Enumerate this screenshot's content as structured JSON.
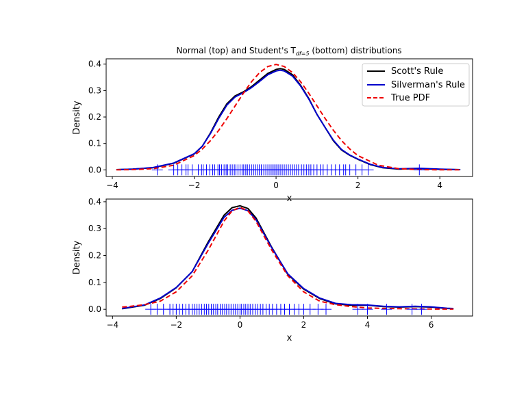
{
  "chart_data": {
    "figure_title": {
      "prefix": "Normal (top) and Student's T",
      "subscript": "df=5",
      "suffix": " (bottom) distributions"
    },
    "legend": {
      "placement": "top-right",
      "entries": [
        {
          "label": "Scott's Rule",
          "color": "#000000",
          "style": "solid"
        },
        {
          "label": "Silverman's Rule",
          "color": "#0000cc",
          "style": "solid"
        },
        {
          "label": "True PDF",
          "color": "#ee0000",
          "style": "dashed"
        }
      ]
    },
    "panels": [
      {
        "type": "line",
        "name": "normal",
        "xlabel": "x",
        "ylabel": "Density",
        "xlim": [
          -4.15,
          4.8
        ],
        "ylim": [
          -0.025,
          0.42
        ],
        "xticks": [
          -4,
          -2,
          0,
          2,
          4
        ],
        "yticks": [
          0.0,
          0.1,
          0.2,
          0.3,
          0.4
        ],
        "series": [
          {
            "name": "Scott's Rule",
            "color": "#000000",
            "dashed": false,
            "x": [
              -3.9,
              -3.5,
              -3.0,
              -2.5,
              -2.0,
              -1.8,
              -1.6,
              -1.4,
              -1.2,
              -1.0,
              -0.8,
              -0.6,
              -0.4,
              -0.2,
              0.0,
              0.1,
              0.2,
              0.4,
              0.6,
              0.8,
              1.0,
              1.2,
              1.4,
              1.6,
              1.8,
              2.0,
              2.3,
              2.6,
              3.0,
              3.5,
              4.0,
              4.5
            ],
            "y": [
              0.001,
              0.003,
              0.008,
              0.025,
              0.06,
              0.09,
              0.14,
              0.2,
              0.25,
              0.28,
              0.295,
              0.315,
              0.34,
              0.365,
              0.38,
              0.383,
              0.38,
              0.36,
              0.32,
              0.27,
              0.21,
              0.16,
              0.11,
              0.075,
              0.055,
              0.04,
              0.02,
              0.008,
              0.003,
              0.005,
              0.002,
              0.001
            ]
          },
          {
            "name": "Silverman's Rule",
            "color": "#0000cc",
            "dashed": false,
            "x": [
              -3.9,
              -3.5,
              -3.0,
              -2.5,
              -2.0,
              -1.8,
              -1.6,
              -1.4,
              -1.2,
              -1.0,
              -0.8,
              -0.6,
              -0.4,
              -0.2,
              0.0,
              0.1,
              0.2,
              0.4,
              0.6,
              0.8,
              1.0,
              1.2,
              1.4,
              1.6,
              1.8,
              2.0,
              2.3,
              2.6,
              3.0,
              3.5,
              4.0,
              4.5
            ],
            "y": [
              0.001,
              0.003,
              0.009,
              0.026,
              0.061,
              0.09,
              0.138,
              0.195,
              0.245,
              0.276,
              0.292,
              0.311,
              0.335,
              0.36,
              0.374,
              0.377,
              0.374,
              0.355,
              0.317,
              0.268,
              0.21,
              0.16,
              0.112,
              0.077,
              0.056,
              0.041,
              0.021,
              0.009,
              0.004,
              0.006,
              0.003,
              0.001
            ]
          },
          {
            "name": "True PDF",
            "color": "#ee0000",
            "dashed": true,
            "x": [
              -3.9,
              -3.5,
              -3.0,
              -2.5,
              -2.0,
              -1.8,
              -1.6,
              -1.4,
              -1.2,
              -1.0,
              -0.8,
              -0.6,
              -0.4,
              -0.2,
              0.0,
              0.2,
              0.4,
              0.6,
              0.8,
              1.0,
              1.2,
              1.4,
              1.6,
              1.8,
              2.0,
              2.5,
              3.0,
              3.5,
              4.0,
              4.5
            ],
            "y": [
              0.0002,
              0.0009,
              0.0044,
              0.0175,
              0.054,
              0.079,
              0.1109,
              0.1497,
              0.1942,
              0.242,
              0.2897,
              0.3332,
              0.3683,
              0.391,
              0.3989,
              0.391,
              0.3683,
              0.3332,
              0.2897,
              0.242,
              0.1942,
              0.1497,
              0.1109,
              0.079,
              0.054,
              0.0175,
              0.0044,
              0.0009,
              0.0002,
              0.0
            ]
          }
        ],
        "rug": [
          -2.9,
          -2.5,
          -2.4,
          -2.3,
          -2.2,
          -2.15,
          -2.05,
          -1.9,
          -1.82,
          -1.78,
          -1.7,
          -1.62,
          -1.55,
          -1.5,
          -1.42,
          -1.38,
          -1.33,
          -1.27,
          -1.22,
          -1.18,
          -1.12,
          -1.07,
          -1.02,
          -0.98,
          -0.93,
          -0.88,
          -0.83,
          -0.79,
          -0.74,
          -0.7,
          -0.65,
          -0.6,
          -0.55,
          -0.5,
          -0.45,
          -0.41,
          -0.36,
          -0.3,
          -0.25,
          -0.2,
          -0.15,
          -0.1,
          -0.05,
          0.0,
          0.05,
          0.1,
          0.15,
          0.2,
          0.25,
          0.3,
          0.35,
          0.4,
          0.45,
          0.5,
          0.55,
          0.62,
          0.68,
          0.74,
          0.8,
          0.85,
          0.92,
          1.0,
          1.08,
          1.15,
          1.25,
          1.35,
          1.45,
          1.55,
          1.65,
          1.7,
          1.8,
          1.95,
          2.1,
          2.25,
          3.5
        ]
      },
      {
        "type": "line",
        "name": "student_t",
        "xlabel": "x",
        "ylabel": "Density",
        "xlim": [
          -4.2,
          7.3
        ],
        "ylim": [
          -0.025,
          0.41
        ],
        "xticks": [
          -4,
          -2,
          0,
          2,
          4,
          6
        ],
        "yticks": [
          0.0,
          0.1,
          0.2,
          0.3,
          0.4
        ],
        "series": [
          {
            "name": "Scott's Rule",
            "color": "#000000",
            "dashed": false,
            "x": [
              -3.7,
              -3.0,
              -2.5,
              -2.0,
              -1.5,
              -1.0,
              -0.5,
              -0.25,
              0.0,
              0.25,
              0.5,
              1.0,
              1.5,
              2.0,
              2.5,
              3.0,
              3.5,
              4.0,
              4.5,
              5.0,
              5.5,
              6.0,
              6.5,
              6.7
            ],
            "y": [
              0.002,
              0.015,
              0.04,
              0.08,
              0.14,
              0.25,
              0.35,
              0.378,
              0.385,
              0.375,
              0.34,
              0.23,
              0.13,
              0.075,
              0.04,
              0.02,
              0.015,
              0.015,
              0.01,
              0.008,
              0.01,
              0.008,
              0.003,
              0.002
            ]
          },
          {
            "name": "Silverman's Rule",
            "color": "#0000cc",
            "dashed": false,
            "x": [
              -3.7,
              -3.0,
              -2.5,
              -2.0,
              -1.5,
              -1.0,
              -0.5,
              -0.25,
              0.0,
              0.25,
              0.5,
              1.0,
              1.5,
              2.0,
              2.5,
              3.0,
              3.5,
              4.0,
              4.5,
              5.0,
              5.5,
              6.0,
              6.5,
              6.7
            ],
            "y": [
              0.003,
              0.016,
              0.042,
              0.081,
              0.14,
              0.245,
              0.342,
              0.368,
              0.376,
              0.367,
              0.334,
              0.228,
              0.132,
              0.077,
              0.042,
              0.022,
              0.017,
              0.016,
              0.011,
              0.009,
              0.011,
              0.009,
              0.004,
              0.003
            ]
          },
          {
            "name": "True PDF",
            "color": "#ee0000",
            "dashed": true,
            "x": [
              -3.7,
              -3.5,
              -3.0,
              -2.5,
              -2.0,
              -1.5,
              -1.0,
              -0.75,
              -0.5,
              -0.25,
              0.0,
              0.25,
              0.5,
              0.75,
              1.0,
              1.5,
              2.0,
              2.5,
              3.0,
              3.5,
              4.0,
              4.5,
              5.0,
              5.5,
              6.0,
              6.5,
              6.7
            ],
            "y": [
              0.0084,
              0.0101,
              0.0173,
              0.0303,
              0.0651,
              0.1245,
              0.2197,
              0.2733,
              0.3279,
              0.366,
              0.3796,
              0.366,
              0.3279,
              0.2733,
              0.2197,
              0.1245,
              0.0651,
              0.0303,
              0.0173,
              0.0101,
              0.0051,
              0.0033,
              0.0021,
              0.0015,
              0.001,
              0.0007,
              0.0006
            ]
          }
        ],
        "rug": [
          -2.8,
          -2.6,
          -2.4,
          -2.2,
          -2.1,
          -2.0,
          -1.9,
          -1.8,
          -1.7,
          -1.6,
          -1.5,
          -1.42,
          -1.35,
          -1.28,
          -1.2,
          -1.12,
          -1.05,
          -0.98,
          -0.9,
          -0.83,
          -0.76,
          -0.7,
          -0.62,
          -0.55,
          -0.48,
          -0.42,
          -0.35,
          -0.28,
          -0.2,
          -0.14,
          -0.07,
          0.0,
          0.05,
          0.12,
          0.18,
          0.25,
          0.32,
          0.4,
          0.48,
          0.56,
          0.64,
          0.72,
          0.82,
          0.92,
          1.02,
          1.15,
          1.28,
          1.4,
          1.55,
          1.7,
          1.85,
          2.0,
          2.2,
          2.45,
          2.7,
          3.7,
          4.0,
          4.6,
          5.4,
          5.7
        ]
      }
    ]
  }
}
